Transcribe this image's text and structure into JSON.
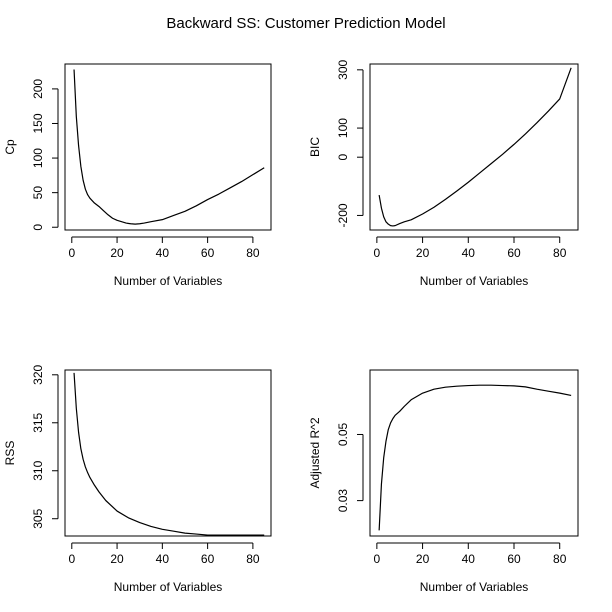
{
  "figure": {
    "title": "Backward SS: Customer Prediction Model"
  },
  "chart_data": [
    {
      "type": "line",
      "title": "",
      "xlabel": "Number of Variables",
      "ylabel": "Cp",
      "xlim": [
        -3,
        88
      ],
      "ylim": [
        -4,
        236
      ],
      "xticks": [
        0,
        20,
        40,
        60,
        80
      ],
      "yticks": [
        0,
        50,
        100,
        150,
        200
      ],
      "grid": false,
      "x": [
        1,
        2,
        3,
        4,
        5,
        6,
        7,
        8,
        10,
        12,
        14,
        16,
        18,
        20,
        22,
        24,
        26,
        28,
        30,
        32,
        35,
        40,
        45,
        50,
        55,
        60,
        65,
        70,
        75,
        80,
        85
      ],
      "y": [
        228,
        160,
        118,
        88,
        68,
        55,
        47,
        42,
        35,
        30,
        24,
        18,
        13,
        10,
        8,
        6,
        5,
        4.5,
        5,
        6,
        8,
        11,
        17,
        23,
        31,
        40,
        48,
        57,
        66,
        76,
        86
      ]
    },
    {
      "type": "line",
      "title": "",
      "xlabel": "Number of Variables",
      "ylabel": "BIC",
      "xlim": [
        -3,
        88
      ],
      "ylim": [
        -250,
        320
      ],
      "xticks": [
        0,
        20,
        40,
        60,
        80
      ],
      "yticks": [
        -200,
        0,
        100,
        300
      ],
      "grid": false,
      "x": [
        1,
        2,
        3,
        4,
        5,
        6,
        7,
        8,
        10,
        12,
        15,
        20,
        25,
        30,
        35,
        40,
        45,
        50,
        55,
        60,
        65,
        70,
        75,
        80,
        85
      ],
      "y": [
        -130,
        -175,
        -205,
        -222,
        -230,
        -235,
        -236,
        -235,
        -228,
        -222,
        -215,
        -195,
        -172,
        -145,
        -116,
        -86,
        -54,
        -22,
        10,
        44,
        80,
        118,
        158,
        200,
        307
      ]
    },
    {
      "type": "line",
      "title": "",
      "xlabel": "Number of Variables",
      "ylabel": "RSS",
      "xlim": [
        -3,
        88
      ],
      "ylim": [
        303.2,
        320.5
      ],
      "xticks": [
        0,
        20,
        40,
        60,
        80
      ],
      "yticks": [
        305,
        310,
        315,
        320
      ],
      "grid": false,
      "x": [
        1,
        2,
        3,
        4,
        5,
        6,
        7,
        8,
        10,
        12,
        15,
        20,
        25,
        30,
        35,
        40,
        45,
        50,
        55,
        60,
        65,
        70,
        75,
        80,
        85
      ],
      "y": [
        320.2,
        316.5,
        314.0,
        312.3,
        311.2,
        310.4,
        309.8,
        309.3,
        308.5,
        307.8,
        306.9,
        305.8,
        305.1,
        304.6,
        304.2,
        303.9,
        303.7,
        303.5,
        303.4,
        303.3,
        303.3,
        303.3,
        303.3,
        303.3,
        303.3
      ]
    },
    {
      "type": "line",
      "title": "",
      "xlabel": "Number of Variables",
      "ylabel": "Adjusted R^2",
      "xlim": [
        -3,
        88
      ],
      "ylim": [
        0.0193,
        0.0695
      ],
      "xticks": [
        0,
        20,
        40,
        60,
        80
      ],
      "yticks": [
        0.03,
        0.05
      ],
      "grid": false,
      "x": [
        1,
        2,
        3,
        4,
        5,
        6,
        7,
        8,
        10,
        12,
        15,
        20,
        25,
        30,
        35,
        40,
        45,
        50,
        55,
        60,
        65,
        70,
        75,
        80,
        85
      ],
      "y": [
        0.021,
        0.035,
        0.043,
        0.048,
        0.0515,
        0.0535,
        0.0548,
        0.0558,
        0.057,
        0.0585,
        0.0605,
        0.0625,
        0.0637,
        0.0643,
        0.0646,
        0.0648,
        0.0649,
        0.0649,
        0.0648,
        0.0647,
        0.0644,
        0.0637,
        0.0631,
        0.0625,
        0.0618
      ]
    }
  ]
}
